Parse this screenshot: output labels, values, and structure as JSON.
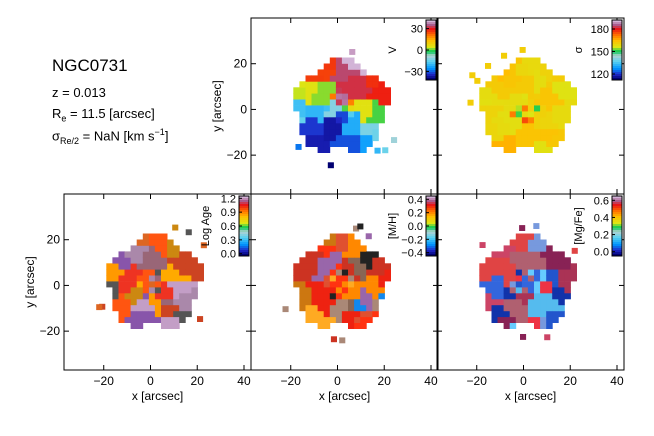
{
  "galaxy": {
    "name": "NGC0731",
    "z_text": "z = 0.013",
    "re_symbol": "R",
    "re_sub": "e",
    "re_value": " = 11.5 [arcsec]",
    "sigma_symbol": "σ",
    "sigma_sub": "Re/2",
    "sigma_value": " = NaN [km s",
    "sigma_sup": "−1",
    "sigma_close": "]"
  },
  "chart_data": [
    {
      "type": "heatmap",
      "id": "velocity",
      "row": 0,
      "col": 1,
      "colorbar_label": "V",
      "colorbar_ticks": [
        "30",
        "0",
        "−30"
      ],
      "colorbar_tick_values": [
        30,
        0,
        -30
      ],
      "colorbar_range": [
        -42,
        42
      ],
      "colormap": "sauron",
      "xlabel": "",
      "ylabel": "y [arcsec]",
      "xlim": [
        -37,
        43
      ],
      "ylim": [
        -37,
        40
      ],
      "xticks": [
        -20,
        0,
        20,
        40
      ],
      "yticks": [
        -20,
        0,
        20
      ],
      "show_xticklabels": false,
      "show_yticklabels": true
    },
    {
      "type": "heatmap",
      "id": "dispersion",
      "row": 0,
      "col": 2,
      "colorbar_label": "σ",
      "colorbar_ticks": [
        "180",
        "150",
        "120"
      ],
      "colorbar_tick_values": [
        180,
        150,
        120
      ],
      "colorbar_range": [
        112,
        192
      ],
      "colormap": "sauron",
      "xlabel": "",
      "ylabel": "",
      "xlim": [
        -37,
        43
      ],
      "ylim": [
        -37,
        40
      ],
      "xticks": [
        -20,
        0,
        20,
        40
      ],
      "yticks": [
        -20,
        0,
        20
      ],
      "show_xticklabels": false,
      "show_yticklabels": false
    },
    {
      "type": "heatmap",
      "id": "logage",
      "row": 1,
      "col": 0,
      "colorbar_label": "Log Age",
      "colorbar_ticks": [
        "1.2",
        "0.9",
        "0.6",
        "0.3",
        "0.0"
      ],
      "colorbar_tick_values": [
        1.2,
        0.9,
        0.6,
        0.3,
        0.0
      ],
      "colorbar_range": [
        -0.05,
        1.25
      ],
      "colormap": "sauron",
      "xlabel": "x [arcsec]",
      "ylabel": "y [arcsec]",
      "xlim": [
        -37,
        43
      ],
      "ylim": [
        -37,
        40
      ],
      "xticks": [
        -20,
        0,
        20,
        40
      ],
      "yticks": [
        -20,
        0,
        20
      ],
      "show_xticklabels": true,
      "show_yticklabels": true
    },
    {
      "type": "heatmap",
      "id": "metallicity",
      "row": 1,
      "col": 1,
      "colorbar_label": "[M/H]",
      "colorbar_ticks": [
        "0.4",
        "0.2",
        "0.0",
        "−0.2",
        "−0.4"
      ],
      "colorbar_tick_values": [
        0.4,
        0.2,
        0.0,
        -0.2,
        -0.4
      ],
      "colorbar_range": [
        -0.45,
        0.45
      ],
      "colormap": "sauron",
      "xlabel": "x [arcsec]",
      "ylabel": "",
      "xlim": [
        -37,
        43
      ],
      "ylim": [
        -37,
        40
      ],
      "xticks": [
        -20,
        0,
        20,
        40
      ],
      "yticks": [
        -20,
        0,
        20
      ],
      "show_xticklabels": true,
      "show_yticklabels": false
    },
    {
      "type": "heatmap",
      "id": "alphafe",
      "row": 1,
      "col": 2,
      "colorbar_label": "[Mg/Fe]",
      "colorbar_ticks": [
        "0.6",
        "0.4",
        "0.2",
        "0.0"
      ],
      "colorbar_tick_values": [
        0.6,
        0.4,
        0.2,
        0.0
      ],
      "colorbar_range": [
        -0.05,
        0.65
      ],
      "colormap": "sauron",
      "xlabel": "x [arcsec]",
      "ylabel": "",
      "xlim": [
        -37,
        43
      ],
      "ylim": [
        -37,
        40
      ],
      "xticks": [
        -20,
        0,
        20,
        40
      ],
      "yticks": [
        -20,
        0,
        20
      ],
      "show_xticklabels": true,
      "show_yticklabels": false
    }
  ]
}
